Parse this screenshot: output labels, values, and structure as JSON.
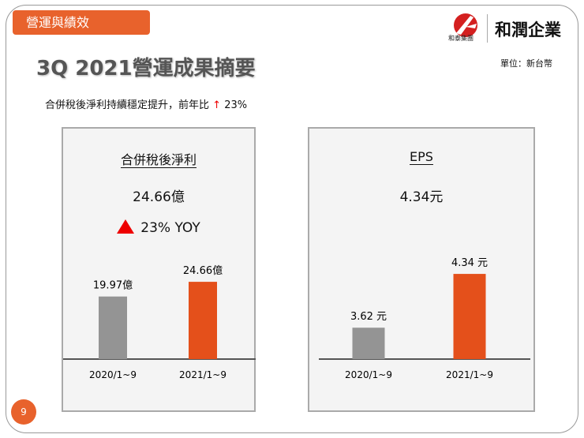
{
  "header": {
    "section_tag": "營運與績效",
    "logo_subtext": "和泰集團",
    "brand": "和潤企業",
    "title": "3Q 2021營運成果摘要",
    "unit": "單位：新台幣"
  },
  "subtitle": {
    "text": "合併稅後淨利持續穩定提升，前年比",
    "arrow": "↑",
    "value": "23%"
  },
  "page_number": "9",
  "colors": {
    "accent": "#e8622c",
    "bar_prior": "#949494",
    "bar_current": "#e4501b",
    "up": "#e00000"
  },
  "panels": [
    {
      "title": "合併稅後淨利",
      "value": "24.66億",
      "yoy": "23% YOY",
      "yoy_icon": "triangle-up-icon"
    },
    {
      "title": "EPS",
      "value": "4.34元"
    }
  ],
  "chart_data": [
    {
      "type": "bar",
      "title": "合併稅後淨利",
      "categories": [
        "2020/1~9",
        "2021/1~9"
      ],
      "values": [
        19.97,
        24.66
      ],
      "labels": [
        "19.97億",
        "24.66億"
      ],
      "ylim": [
        0,
        40.3
      ],
      "grid": false
    },
    {
      "type": "bar",
      "title": "EPS",
      "categories": [
        "2020/1~9",
        "2021/1~9"
      ],
      "values": [
        3.62,
        4.34
      ],
      "labels": [
        "3.62 元",
        "4.34 元"
      ],
      "ylim": [
        3.2,
        4.89
      ],
      "grid": false
    }
  ]
}
